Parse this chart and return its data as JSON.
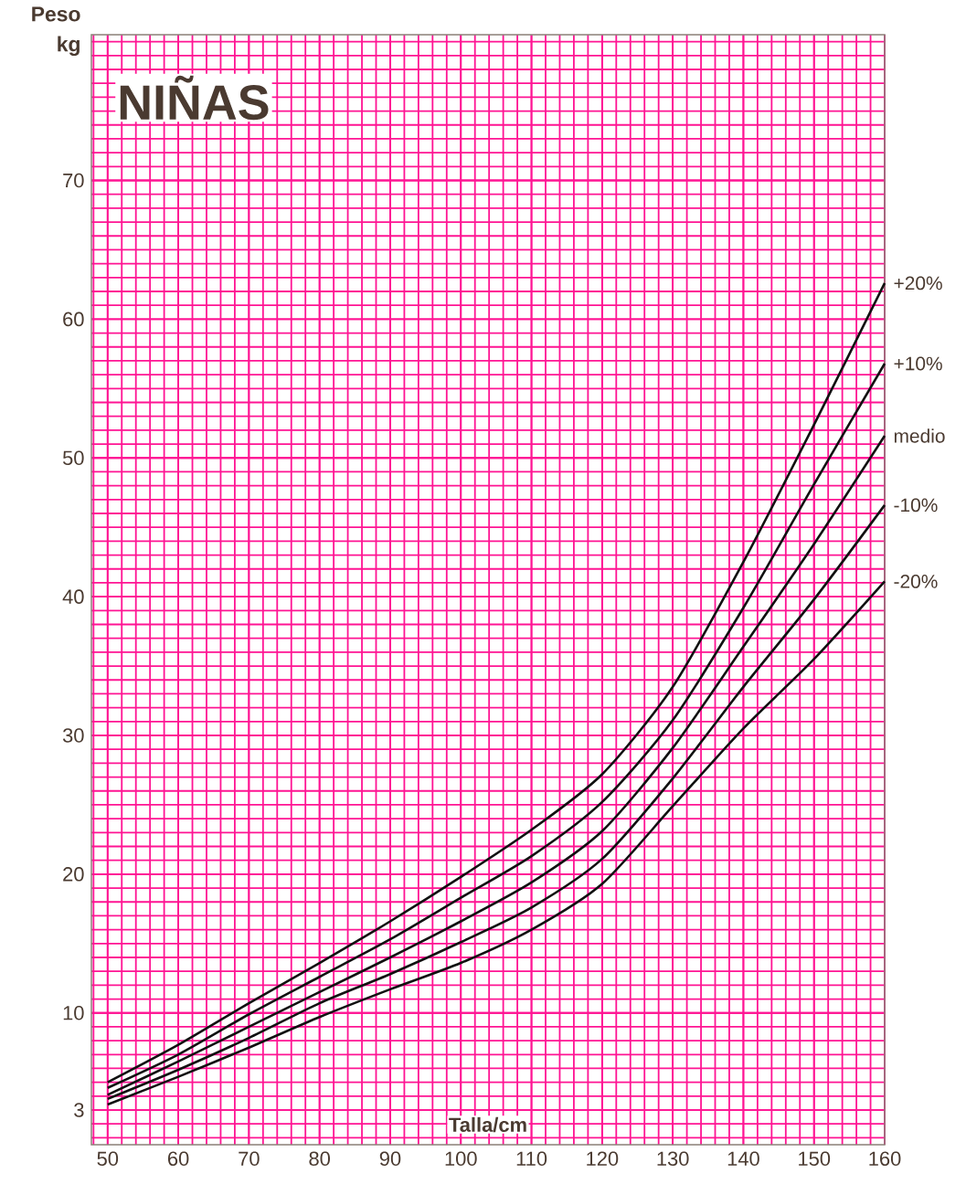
{
  "chart_data": {
    "type": "line",
    "title": "NIÑAS",
    "xlabel": "Talla/cm",
    "ylabel": "Peso kg",
    "x": [
      50,
      60,
      70,
      80,
      90,
      100,
      110,
      120,
      130,
      140,
      150,
      160
    ],
    "series": [
      {
        "name": "+20%",
        "color": "#111111",
        "values": [
          5.0,
          7.7,
          10.7,
          13.6,
          16.6,
          19.8,
          23.2,
          27.2,
          33.5,
          42.5,
          52.4,
          62.6
        ]
      },
      {
        "name": "+10%",
        "color": "#111111",
        "values": [
          4.6,
          7.0,
          9.9,
          12.6,
          15.3,
          18.3,
          21.3,
          25.2,
          31.1,
          39.2,
          48.1,
          56.8
        ]
      },
      {
        "name": "medio",
        "color": "#111111",
        "values": [
          4.1,
          6.5,
          9.0,
          11.5,
          14.0,
          16.6,
          19.4,
          23.1,
          29.1,
          36.4,
          43.8,
          51.6
        ]
      },
      {
        "name": "-10%",
        "color": "#111111",
        "values": [
          3.8,
          5.9,
          8.2,
          10.7,
          12.8,
          15.1,
          17.6,
          21.1,
          26.9,
          33.5,
          39.8,
          46.6
        ]
      },
      {
        "name": "-20%",
        "color": "#111111",
        "values": [
          3.4,
          5.4,
          7.5,
          9.7,
          11.7,
          13.6,
          16.0,
          19.3,
          24.9,
          30.5,
          35.5,
          41.1
        ]
      }
    ],
    "xlim": [
      47.7,
      160
    ],
    "ylim": [
      0.5,
      80.5
    ],
    "xticks": [
      50,
      60,
      70,
      80,
      90,
      100,
      110,
      120,
      130,
      140,
      150,
      160
    ],
    "yticks": [
      3,
      10,
      20,
      30,
      40,
      50,
      60,
      70
    ],
    "grid": true
  }
}
